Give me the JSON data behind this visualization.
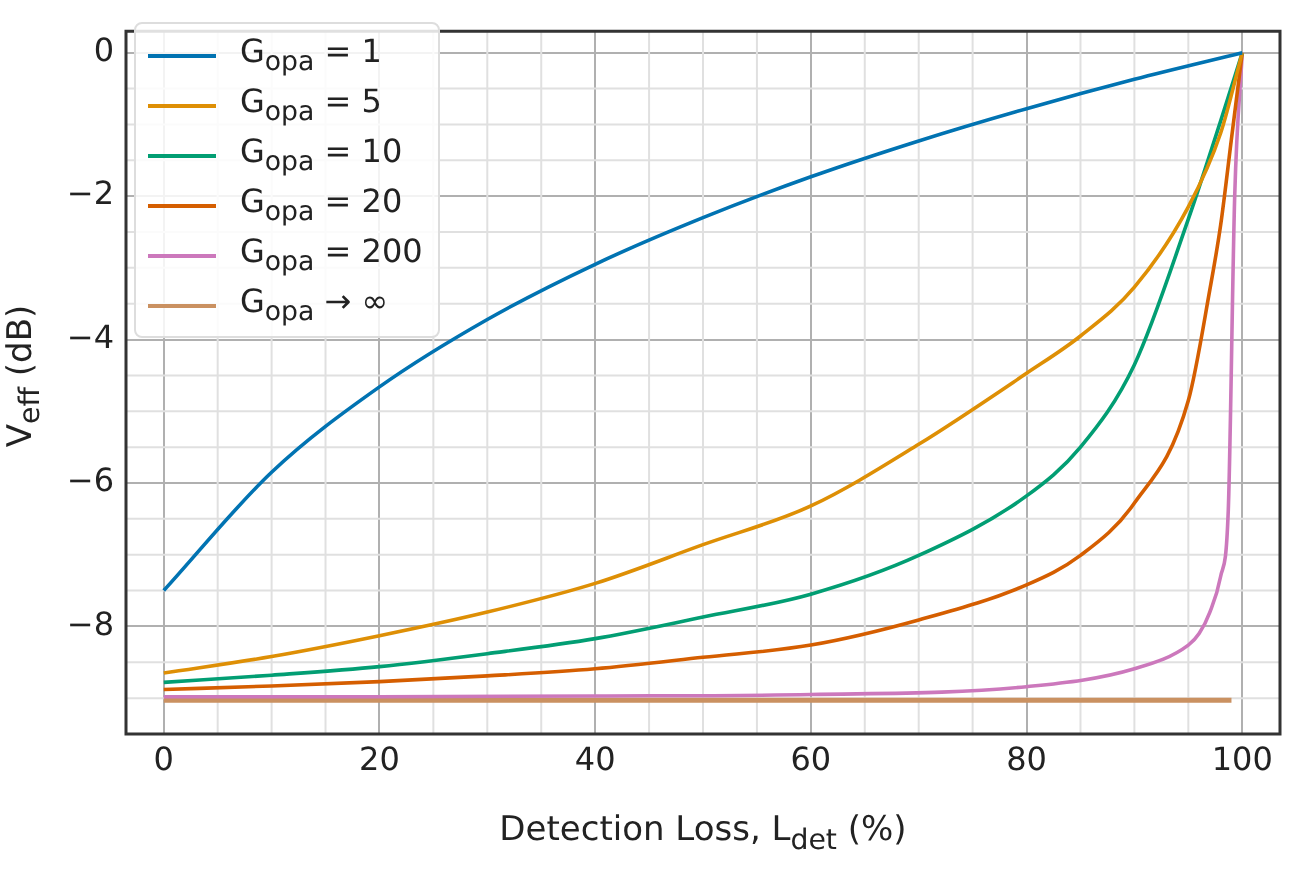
{
  "chart_data": {
    "type": "line",
    "xlabel": "Detection Loss, L$_{det}$ (%)",
    "ylabel": "V$_{eff}$ (dB)",
    "xlim": [
      -3.5,
      103.5
    ],
    "ylim": [
      -9.5,
      0.3
    ],
    "xticks": [
      0,
      20,
      40,
      60,
      80,
      100
    ],
    "yticks": [
      {
        "value": -8,
        "label": "−8"
      },
      {
        "value": -6,
        "label": "−6"
      },
      {
        "value": -4,
        "label": "−4"
      },
      {
        "value": -2,
        "label": "−2"
      },
      0
    ],
    "grid": true,
    "legend": "top left",
    "marker": "none",
    "line_style": "solid",
    "series": [
      {
        "name": "G$_{opa}$ = 1",
        "color": "#0173b2",
        "x": [
          0,
          10,
          20,
          30,
          40,
          50,
          60,
          70,
          80,
          90,
          100
        ],
        "values": [
          -7.5,
          -5.85,
          -4.66,
          -3.72,
          -2.95,
          -2.3,
          -1.73,
          -1.23,
          -0.78,
          -0.37,
          0
        ]
      },
      {
        "name": "G$_{opa}$ = 5",
        "color": "#de8f05",
        "x": [
          0,
          10,
          20,
          30,
          40,
          50,
          60,
          70,
          80,
          85,
          90,
          95,
          98,
          100
        ],
        "values": [
          -8.65,
          -8.42,
          -8.13,
          -7.8,
          -7.4,
          -6.86,
          -6.32,
          -5.46,
          -4.47,
          -3.95,
          -3.27,
          -2.15,
          -1.12,
          0
        ]
      },
      {
        "name": "G$_{opa}$ = 10",
        "color": "#029e73",
        "x": [
          0,
          10,
          20,
          30,
          40,
          50,
          60,
          70,
          80,
          85,
          90,
          95,
          98,
          100
        ],
        "values": [
          -8.78,
          -8.68,
          -8.56,
          -8.38,
          -8.17,
          -7.87,
          -7.55,
          -7.01,
          -6.18,
          -5.5,
          -4.35,
          -2.32,
          -0.95,
          0
        ]
      },
      {
        "name": "G$_{opa}$ = 20",
        "color": "#d55e00",
        "x": [
          0,
          10,
          20,
          30,
          40,
          50,
          60,
          70,
          80,
          85,
          90,
          95,
          97,
          98,
          99,
          100
        ],
        "values": [
          -8.88,
          -8.83,
          -8.77,
          -8.69,
          -8.59,
          -8.43,
          -8.26,
          -7.91,
          -7.42,
          -7.01,
          -6.28,
          -4.85,
          -3.3,
          -2.4,
          -1.2,
          0
        ]
      },
      {
        "name": "G$_{opa}$ = 200",
        "color": "#cc78bc",
        "x": [
          0,
          20,
          40,
          60,
          80,
          90,
          95,
          96,
          97,
          98,
          98.7,
          99.3,
          100
        ],
        "values": [
          -8.98,
          -8.98,
          -8.97,
          -8.95,
          -8.84,
          -8.59,
          -8.26,
          -8.1,
          -7.8,
          -7.3,
          -6.4,
          -2,
          0
        ]
      },
      {
        "name": "G$_{opa}$ → ∞",
        "color": "#ca9161",
        "x": [
          0,
          99
        ],
        "values": [
          -9.03,
          -9.03
        ]
      }
    ]
  }
}
